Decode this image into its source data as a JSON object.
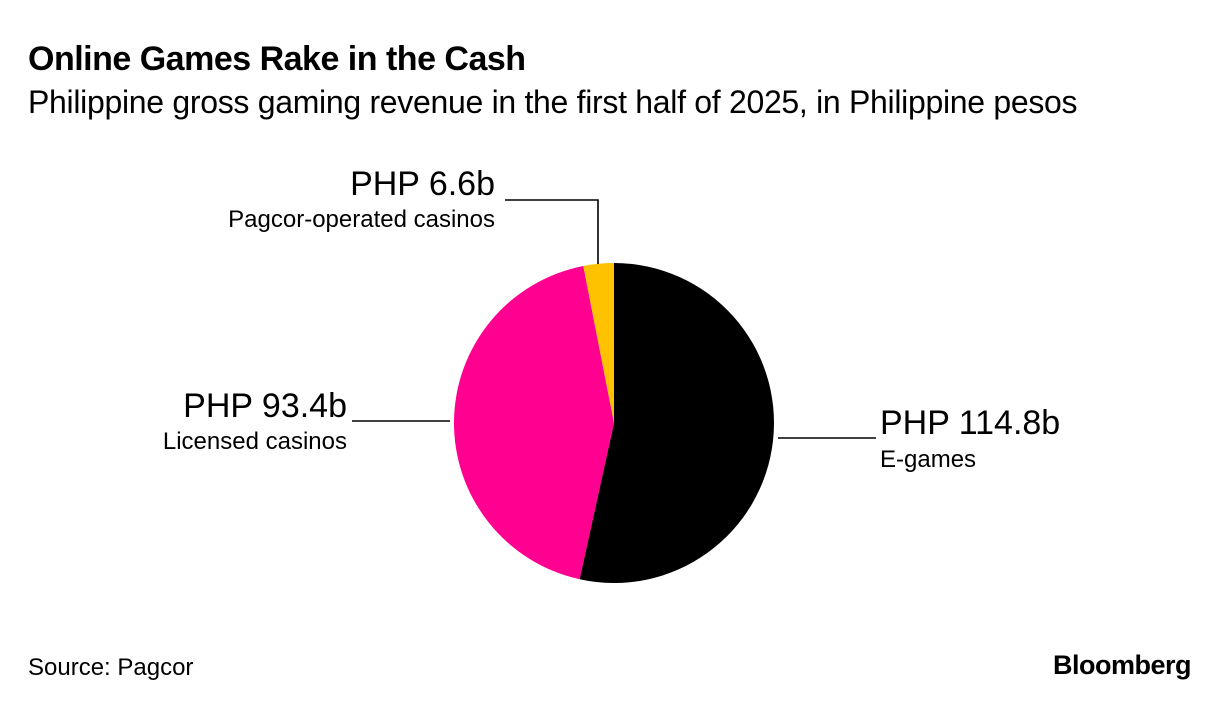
{
  "header": {
    "title": "Online Games Rake in the Cash",
    "subtitle": "Philippine gross gaming revenue in the first half of 2025, in Philippine pesos"
  },
  "chart_data": {
    "type": "pie",
    "title": "Online Games Rake in the Cash",
    "subtitle": "Philippine gross gaming revenue in the first half of 2025, in Philippine pesos",
    "unit": "PHP billion",
    "start": "12 o'clock",
    "direction": "clockwise",
    "slices": [
      {
        "name": "E-games",
        "value": 114.8,
        "value_label": "PHP 114.8b",
        "color": "#000000"
      },
      {
        "name": "Licensed casinos",
        "value": 93.4,
        "value_label": "PHP 93.4b",
        "color": "#ff0090"
      },
      {
        "name": "Pagcor-operated casinos",
        "value": 6.6,
        "value_label": "PHP 6.6b",
        "color": "#ffc200"
      }
    ]
  },
  "footer": {
    "source": "Source: Pagcor",
    "brand": "Bloomberg"
  }
}
